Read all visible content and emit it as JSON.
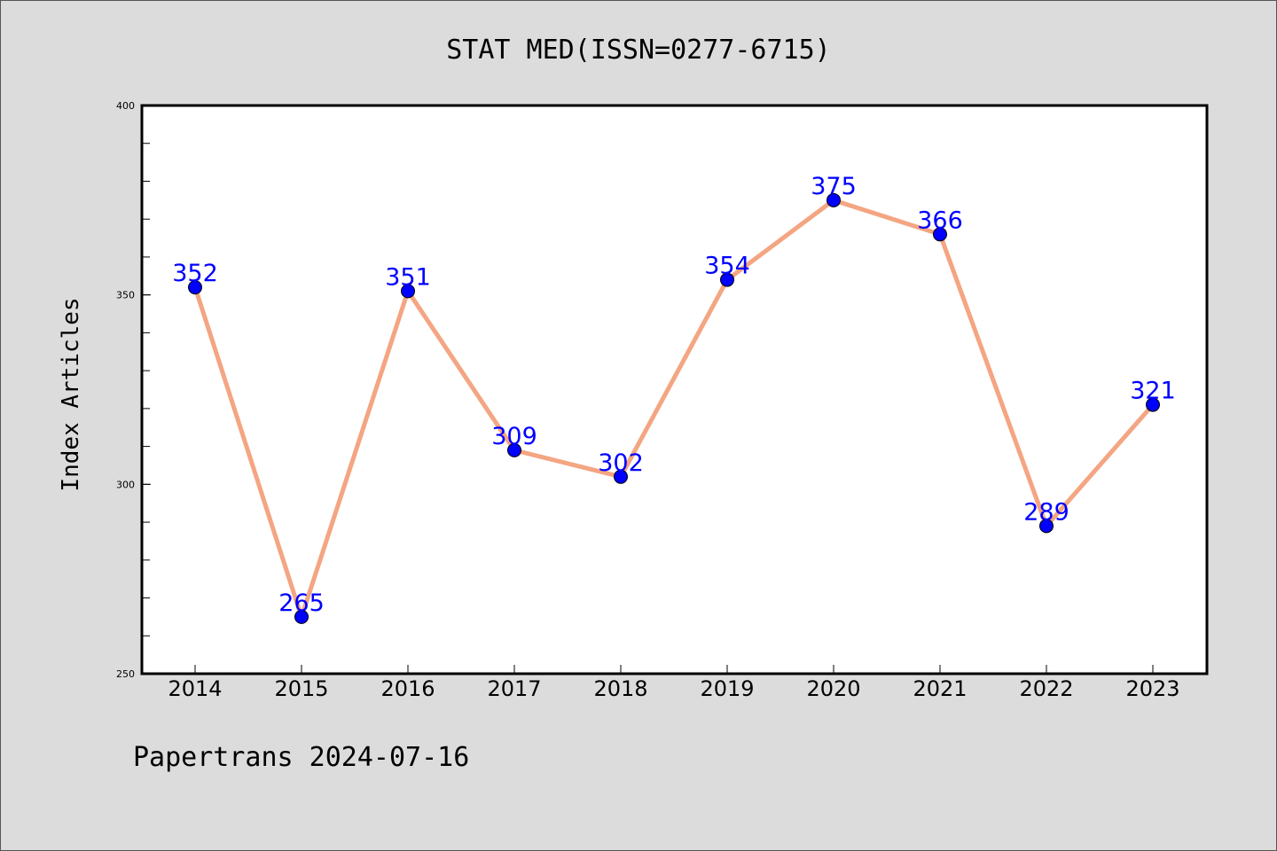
{
  "chart_data": {
    "type": "line",
    "title": "STAT MED(ISSN=0277-6715)",
    "xlabel": "",
    "ylabel": "Index Articles",
    "categories": [
      "2014",
      "2015",
      "2016",
      "2017",
      "2018",
      "2019",
      "2020",
      "2021",
      "2022",
      "2023"
    ],
    "series": [
      {
        "values": [
          352,
          265,
          351,
          309,
          302,
          354,
          375,
          366,
          289,
          321
        ]
      }
    ],
    "ylim": [
      250,
      400
    ],
    "yticks": [
      "250",
      "300",
      "350",
      "400"
    ],
    "grid": false,
    "legend": "none",
    "colors": {
      "line": "#f4a582",
      "marker": "#0000ff",
      "data_label": "#0000ff",
      "background": "#dcdcdc",
      "plot_background": "#ffffff"
    }
  },
  "footer": {
    "text": "Papertrans 2024-07-16"
  }
}
